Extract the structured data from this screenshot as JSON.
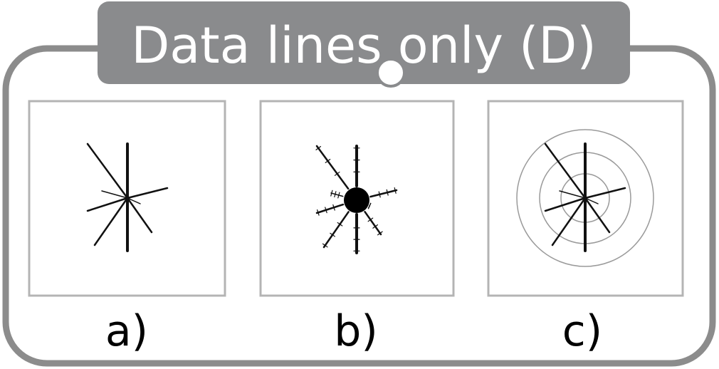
{
  "title": "Data lines only (D)",
  "colors": {
    "frame": "#8c8c8c",
    "title_bg": "#8a8b8d",
    "title_text": "#ffffff",
    "panel_border": "#b4b4b4",
    "line": "#111111",
    "circles": "#9a9a9a"
  },
  "panels": [
    {
      "id": "a",
      "label": "a)"
    },
    {
      "id": "b",
      "label": "b)"
    },
    {
      "id": "c",
      "label": "c)"
    }
  ]
}
